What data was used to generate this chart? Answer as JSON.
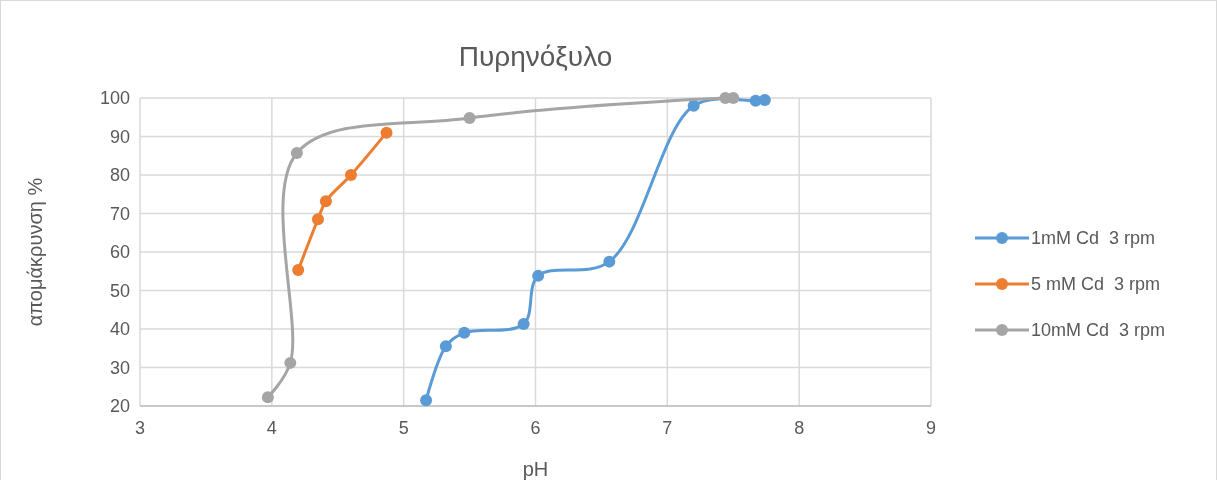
{
  "chart_data": {
    "type": "line",
    "title": "Πυρηνόξυλο",
    "xlabel": "pH",
    "ylabel": "απομάκρυνση %",
    "xlim": [
      3,
      9
    ],
    "xticks": [
      3,
      4,
      5,
      6,
      7,
      8,
      9
    ],
    "ylim": [
      20,
      100
    ],
    "yticks": [
      20,
      30,
      40,
      50,
      60,
      70,
      80,
      90,
      100
    ],
    "grid": true,
    "legend": "right",
    "marker": "circle",
    "line_style": "solid",
    "series": [
      {
        "name": "1mM Cd  3 rpm",
        "color": "#5b9bd5",
        "x": [
          5.17,
          5.32,
          5.46,
          5.91,
          6.02,
          6.56,
          7.2,
          7.67,
          7.74
        ],
        "values": [
          21.5,
          35.5,
          39,
          41.3,
          53.8,
          57.5,
          98,
          99.3,
          99.5
        ]
      },
      {
        "name": "5 mM Cd  3 rpm",
        "color": "#ed7d31",
        "x": [
          4.2,
          4.35,
          4.41,
          4.6,
          4.87
        ],
        "values": [
          55.3,
          68.5,
          73.2,
          80,
          91
        ]
      },
      {
        "name": "10mM Cd  3 rpm",
        "color": "#a5a5a5",
        "x": [
          3.97,
          4.14,
          4.19,
          5.5,
          7.44,
          7.5
        ],
        "values": [
          22.3,
          31.2,
          85.7,
          94.8,
          100,
          100
        ]
      }
    ]
  }
}
